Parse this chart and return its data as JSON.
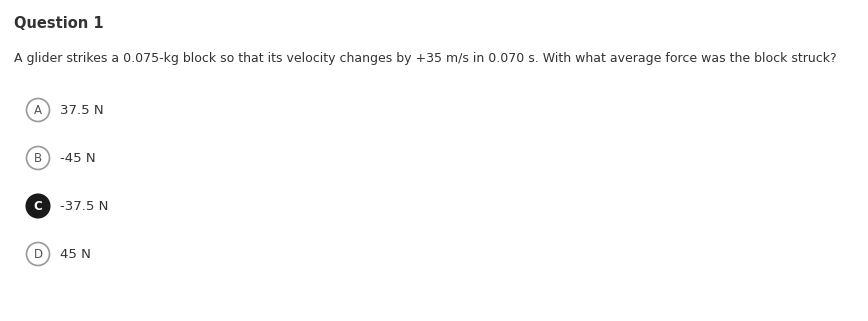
{
  "title": "Question 1",
  "question": "A glider strikes a 0.075-kg block so that its velocity changes by +35 m/s in 0.070 s. With what average force was the block struck?",
  "options": [
    {
      "label": "A",
      "text": "37.5 N",
      "selected": false
    },
    {
      "label": "B",
      "text": "-45 N",
      "selected": false
    },
    {
      "label": "C",
      "text": "-37.5 N",
      "selected": true
    },
    {
      "label": "D",
      "text": "45 N",
      "selected": false
    }
  ],
  "bg_color": "#ffffff",
  "text_color": "#333333",
  "circle_color_default": "#ffffff",
  "circle_edge_default": "#999999",
  "circle_color_selected": "#1a1a1a",
  "circle_edge_selected": "#1a1a1a",
  "label_color_default": "#555555",
  "label_color_selected": "#ffffff",
  "title_fontsize": 10.5,
  "question_fontsize": 9.0,
  "option_fontsize": 9.5,
  "label_fontsize": 8.5,
  "fig_width": 8.68,
  "fig_height": 3.21,
  "dpi": 100
}
